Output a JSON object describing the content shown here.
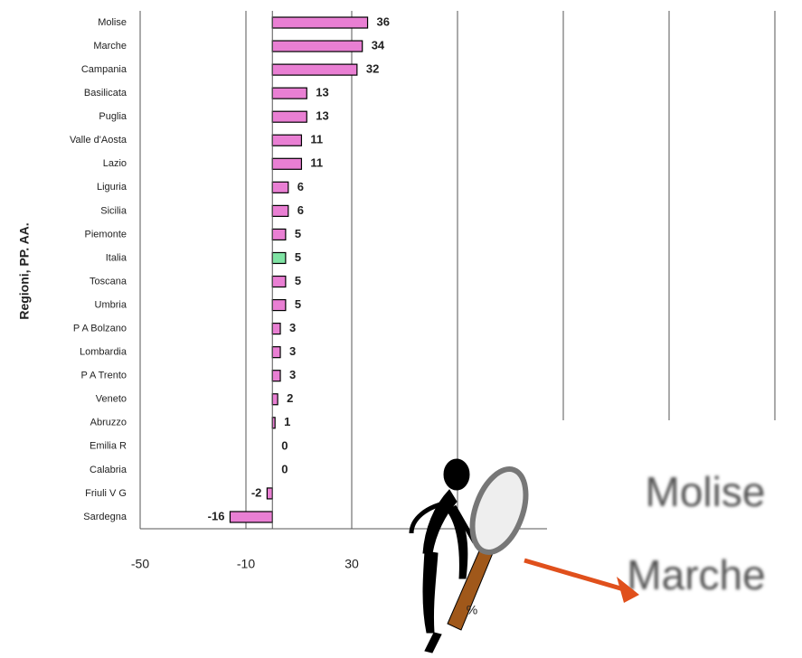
{
  "chart_data": {
    "type": "bar",
    "orientation": "horizontal",
    "y_axis_label": "Regioni, PP. AA.",
    "x_axis_label": "%",
    "categories": [
      "Molise",
      "Marche",
      "Campania",
      "Basilicata",
      "Puglia",
      "Valle d'Aosta",
      "Lazio",
      "Liguria",
      "Sicilia",
      "Piemonte",
      "Italia",
      "Toscana",
      "Umbria",
      "P A Bolzano",
      "Lombardia",
      "P A Trento",
      "Veneto",
      "Abruzzo",
      "Emilia R",
      "Calabria",
      "Friuli V G",
      "Sardegna"
    ],
    "values": [
      36,
      34,
      32,
      13,
      13,
      11,
      11,
      6,
      6,
      5,
      5,
      5,
      5,
      3,
      3,
      3,
      2,
      1,
      0,
      0,
      -2,
      -16
    ],
    "colors": [
      "#e97fd3",
      "#e97fd3",
      "#e97fd3",
      "#e97fd3",
      "#e97fd3",
      "#e97fd3",
      "#e97fd3",
      "#e97fd3",
      "#e97fd3",
      "#e97fd3",
      "#7fe3a3",
      "#e97fd3",
      "#e97fd3",
      "#e97fd3",
      "#e97fd3",
      "#e97fd3",
      "#e97fd3",
      "#e97fd3",
      "#e97fd3",
      "#e97fd3",
      "#e97fd3",
      "#e97fd3"
    ],
    "xlim": [
      -50,
      190
    ],
    "xticks": [
      -50,
      -10,
      30,
      70,
      110,
      150,
      190
    ],
    "grid": true
  }
}
